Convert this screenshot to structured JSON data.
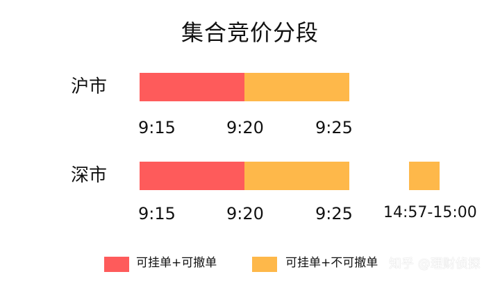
{
  "title": "集合竞价分段",
  "colors": {
    "red": "#fe5b5b",
    "orange": "#feb84a"
  },
  "rows": {
    "sh": {
      "label": "沪市",
      "ticks": [
        "9:15",
        "9:20",
        "9:25"
      ]
    },
    "sz": {
      "label": "深市",
      "ticks": [
        "9:15",
        "9:20",
        "9:25",
        "14:57-15:00"
      ]
    }
  },
  "legend": {
    "items": [
      {
        "label": "可挂单+可撤单",
        "color": "#fe5b5b"
      },
      {
        "label": "可挂单+不可撤单",
        "color": "#feb84a"
      }
    ]
  },
  "watermark": "知乎 @理财侦探"
}
